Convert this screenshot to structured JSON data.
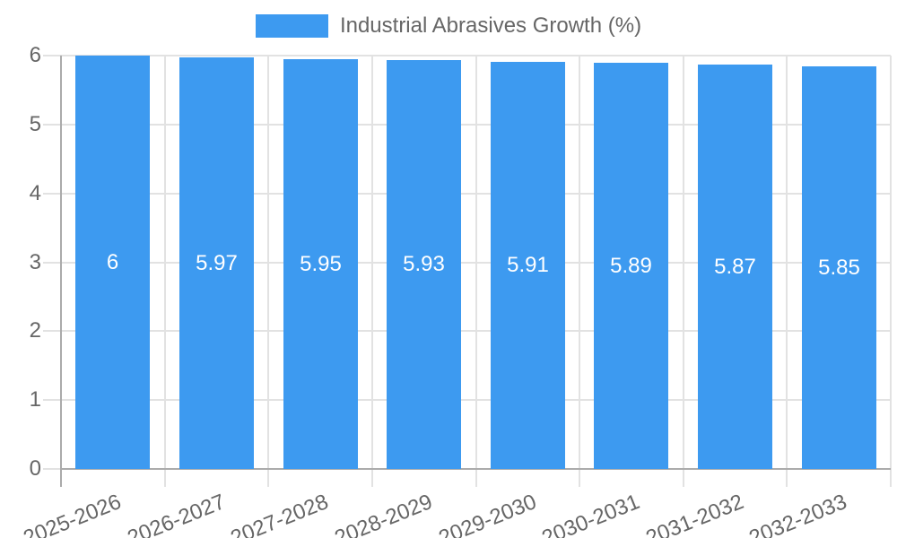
{
  "chart_data": {
    "type": "bar",
    "title": "Industrial Abrasives Growth (%)",
    "categories": [
      "2025-2026",
      "2026-2027",
      "2027-2028",
      "2028-2029",
      "2029-2030",
      "2030-2031",
      "2031-2032",
      "2032-2033"
    ],
    "values": [
      6,
      5.97,
      5.95,
      5.93,
      5.91,
      5.89,
      5.87,
      5.85
    ],
    "xlabel": "",
    "ylabel": "",
    "ylim": [
      0,
      6
    ],
    "yticks": [
      0,
      1,
      2,
      3,
      4,
      5,
      6
    ],
    "grid": true,
    "legend_position": "top",
    "bar_color": "#3d9af0",
    "value_label_color": "#ffffff",
    "grid_color": "#e2e2e2",
    "axis_color": "#ababab",
    "tick_text_color": "#666666",
    "background_color": "#ffffff"
  }
}
